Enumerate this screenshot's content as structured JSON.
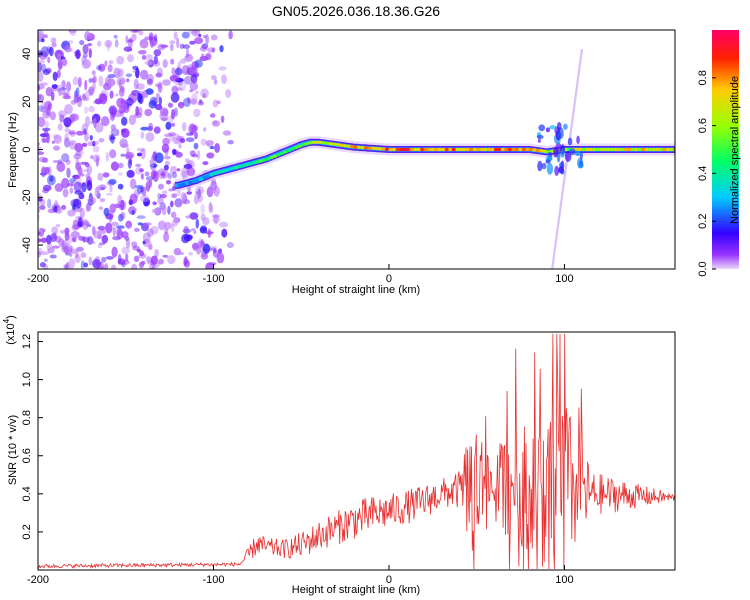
{
  "chart_data": [
    {
      "type": "heatmap",
      "title": "GN05.2026.036.18.36.G26",
      "xlabel": "Height of straight line (km)",
      "ylabel": "Frequency (Hz)",
      "xlim": [
        -200,
        163
      ],
      "ylim": [
        -50,
        50
      ],
      "xticks": [
        -200,
        -100,
        0,
        100
      ],
      "yticks": [
        -40,
        -20,
        0,
        20,
        40
      ],
      "ridge": {
        "description": "spectral ridge center frequency vs height",
        "x": [
          -120,
          -110,
          -100,
          -90,
          -80,
          -70,
          -60,
          -50,
          -45,
          -40,
          -30,
          -20,
          -10,
          0,
          20,
          40,
          60,
          80,
          90,
          100,
          110,
          163
        ],
        "y": [
          -15,
          -13,
          -10,
          -8,
          -6,
          -4,
          -1,
          2,
          3,
          3,
          2,
          1,
          0.5,
          0,
          0,
          0,
          0,
          0,
          -1,
          0,
          0,
          0
        ],
        "amplitude": [
          0.25,
          0.3,
          0.35,
          0.4,
          0.45,
          0.5,
          0.55,
          0.6,
          0.65,
          0.7,
          0.75,
          0.8,
          0.85,
          0.9,
          0.9,
          0.85,
          0.85,
          0.8,
          0.7,
          0.6,
          0.7,
          0.75
        ]
      },
      "colorbar": {
        "label": "Normalized spectral amplitude",
        "range": [
          0,
          1
        ],
        "ticks": [
          "0.0",
          "0.2",
          "0.4",
          "0.6",
          "0.8"
        ],
        "tick_values": [
          0,
          0.2,
          0.4,
          0.6,
          0.8
        ]
      }
    },
    {
      "type": "line",
      "xlabel": "Height of straight line (km)",
      "ylabel": "SNR (10 * v/v)",
      "scale_label": "(x10",
      "scale_exp": "4",
      "scale_close": ")",
      "xlim": [
        -200,
        163
      ],
      "ylim": [
        0,
        1.25
      ],
      "xticks": [
        -200,
        -100,
        0,
        100
      ],
      "yticks": [
        "0.2",
        "0.4",
        "0.6",
        "0.8",
        "1.0",
        "1.2"
      ],
      "ytick_values": [
        0.2,
        0.4,
        0.6,
        0.8,
        1.0,
        1.2
      ],
      "series": [
        {
          "name": "SNR",
          "color": "#e83030",
          "envelope": {
            "x": [
              -200,
              -85,
              -80,
              -75,
              -70,
              -60,
              -50,
              -40,
              -30,
              -20,
              -10,
              0,
              10,
              20,
              30,
              40,
              48,
              52,
              60,
              70,
              80,
              90,
              95,
              100,
              105,
              110,
              115,
              163
            ],
            "mean": [
              0.02,
              0.03,
              0.08,
              0.14,
              0.12,
              0.11,
              0.13,
              0.18,
              0.22,
              0.26,
              0.29,
              0.31,
              0.33,
              0.36,
              0.4,
              0.42,
              0.45,
              0.45,
              0.44,
              0.45,
              0.45,
              0.44,
              0.46,
              0.44,
              0.42,
              0.42,
              0.4,
              0.38
            ],
            "spread": [
              0.01,
              0.01,
              0.04,
              0.06,
              0.05,
              0.05,
              0.07,
              0.08,
              0.09,
              0.1,
              0.1,
              0.09,
              0.09,
              0.09,
              0.08,
              0.1,
              0.4,
              0.3,
              0.2,
              0.3,
              0.35,
              0.3,
              0.6,
              0.5,
              0.35,
              0.3,
              0.12,
              0.02
            ]
          }
        }
      ]
    }
  ]
}
